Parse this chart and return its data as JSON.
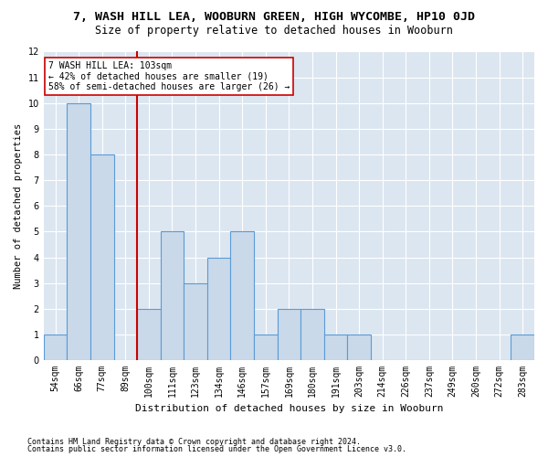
{
  "title": "7, WASH HILL LEA, WOOBURN GREEN, HIGH WYCOMBE, HP10 0JD",
  "subtitle": "Size of property relative to detached houses in Wooburn",
  "xlabel": "Distribution of detached houses by size in Wooburn",
  "ylabel": "Number of detached properties",
  "bins": [
    "54sqm",
    "66sqm",
    "77sqm",
    "89sqm",
    "100sqm",
    "111sqm",
    "123sqm",
    "134sqm",
    "146sqm",
    "157sqm",
    "169sqm",
    "180sqm",
    "191sqm",
    "203sqm",
    "214sqm",
    "226sqm",
    "237sqm",
    "249sqm",
    "260sqm",
    "272sqm",
    "283sqm"
  ],
  "counts": [
    1,
    10,
    8,
    0,
    2,
    5,
    3,
    4,
    5,
    1,
    2,
    2,
    1,
    1,
    0,
    0,
    0,
    0,
    0,
    0,
    1
  ],
  "bar_color": "#c9d9ea",
  "bar_edge_color": "#5b9bd5",
  "vline_x": 3.5,
  "vline_color": "#cc0000",
  "annotation_text": "7 WASH HILL LEA: 103sqm\n← 42% of detached houses are smaller (19)\n58% of semi-detached houses are larger (26) →",
  "annotation_box_color": "#ffffff",
  "annotation_box_edge": "#cc0000",
  "ylim": [
    0,
    12
  ],
  "yticks": [
    0,
    1,
    2,
    3,
    4,
    5,
    6,
    7,
    8,
    9,
    10,
    11,
    12
  ],
  "footnote1": "Contains HM Land Registry data © Crown copyright and database right 2024.",
  "footnote2": "Contains public sector information licensed under the Open Government Licence v3.0.",
  "fig_bg_color": "#ffffff",
  "plot_bg_color": "#dce6f1",
  "grid_color": "#ffffff",
  "title_fontsize": 9.5,
  "subtitle_fontsize": 8.5,
  "tick_fontsize": 7,
  "ylabel_fontsize": 7.5,
  "xlabel_fontsize": 8,
  "footnote_fontsize": 6,
  "annotation_fontsize": 7
}
